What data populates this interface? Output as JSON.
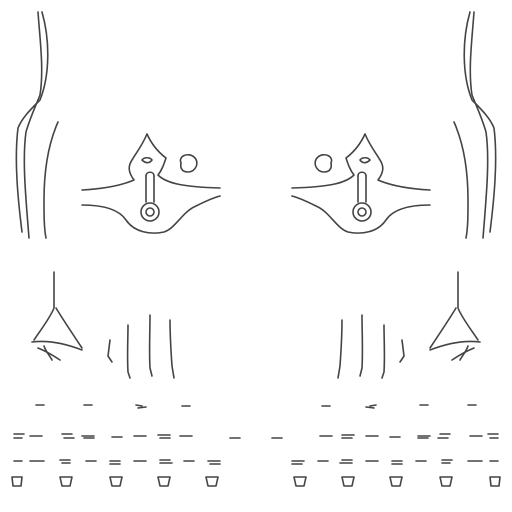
{
  "sheet": {
    "background": "#ffffff",
    "stroke_color": "#444444",
    "mirrored_halves": true,
    "columns_per_half": 5
  }
}
